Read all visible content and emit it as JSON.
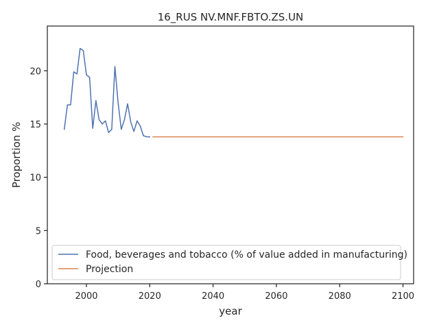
{
  "chart_data": {
    "type": "line",
    "title": "16_RUS NV.MNF.FBTO.ZS.UN",
    "xlabel": "year",
    "ylabel": "Proportion %",
    "xlim": [
      1987.65,
      2103.35
    ],
    "ylim": [
      0,
      24.2
    ],
    "xticks": [
      2000,
      2020,
      2040,
      2060,
      2080,
      2100
    ],
    "yticks": [
      0,
      5,
      10,
      15,
      20
    ],
    "grid": false,
    "legend_position": "lower-left",
    "series": [
      {
        "name": "Food, beverages and tobacco (% of value added in manufacturing)",
        "color": "#4c72b0",
        "x": [
          1993,
          1994,
          1995,
          1996,
          1997,
          1998,
          1999,
          2000,
          2001,
          2002,
          2003,
          2004,
          2005,
          2006,
          2007,
          2008,
          2009,
          2010,
          2011,
          2012,
          2013,
          2014,
          2015,
          2016,
          2017,
          2018,
          2019,
          2020
        ],
        "y": [
          14.5,
          16.8,
          16.8,
          19.9,
          19.7,
          22.1,
          21.9,
          19.6,
          19.4,
          14.6,
          17.2,
          15.4,
          15.0,
          15.3,
          14.2,
          14.5,
          20.4,
          17.0,
          14.5,
          15.4,
          16.9,
          15.2,
          14.3,
          15.3,
          14.8,
          13.9,
          13.8,
          13.8
        ]
      },
      {
        "name": "Projection",
        "color": "#dd8452",
        "x": [
          2021,
          2100
        ],
        "y": [
          13.8,
          13.8
        ]
      }
    ]
  }
}
